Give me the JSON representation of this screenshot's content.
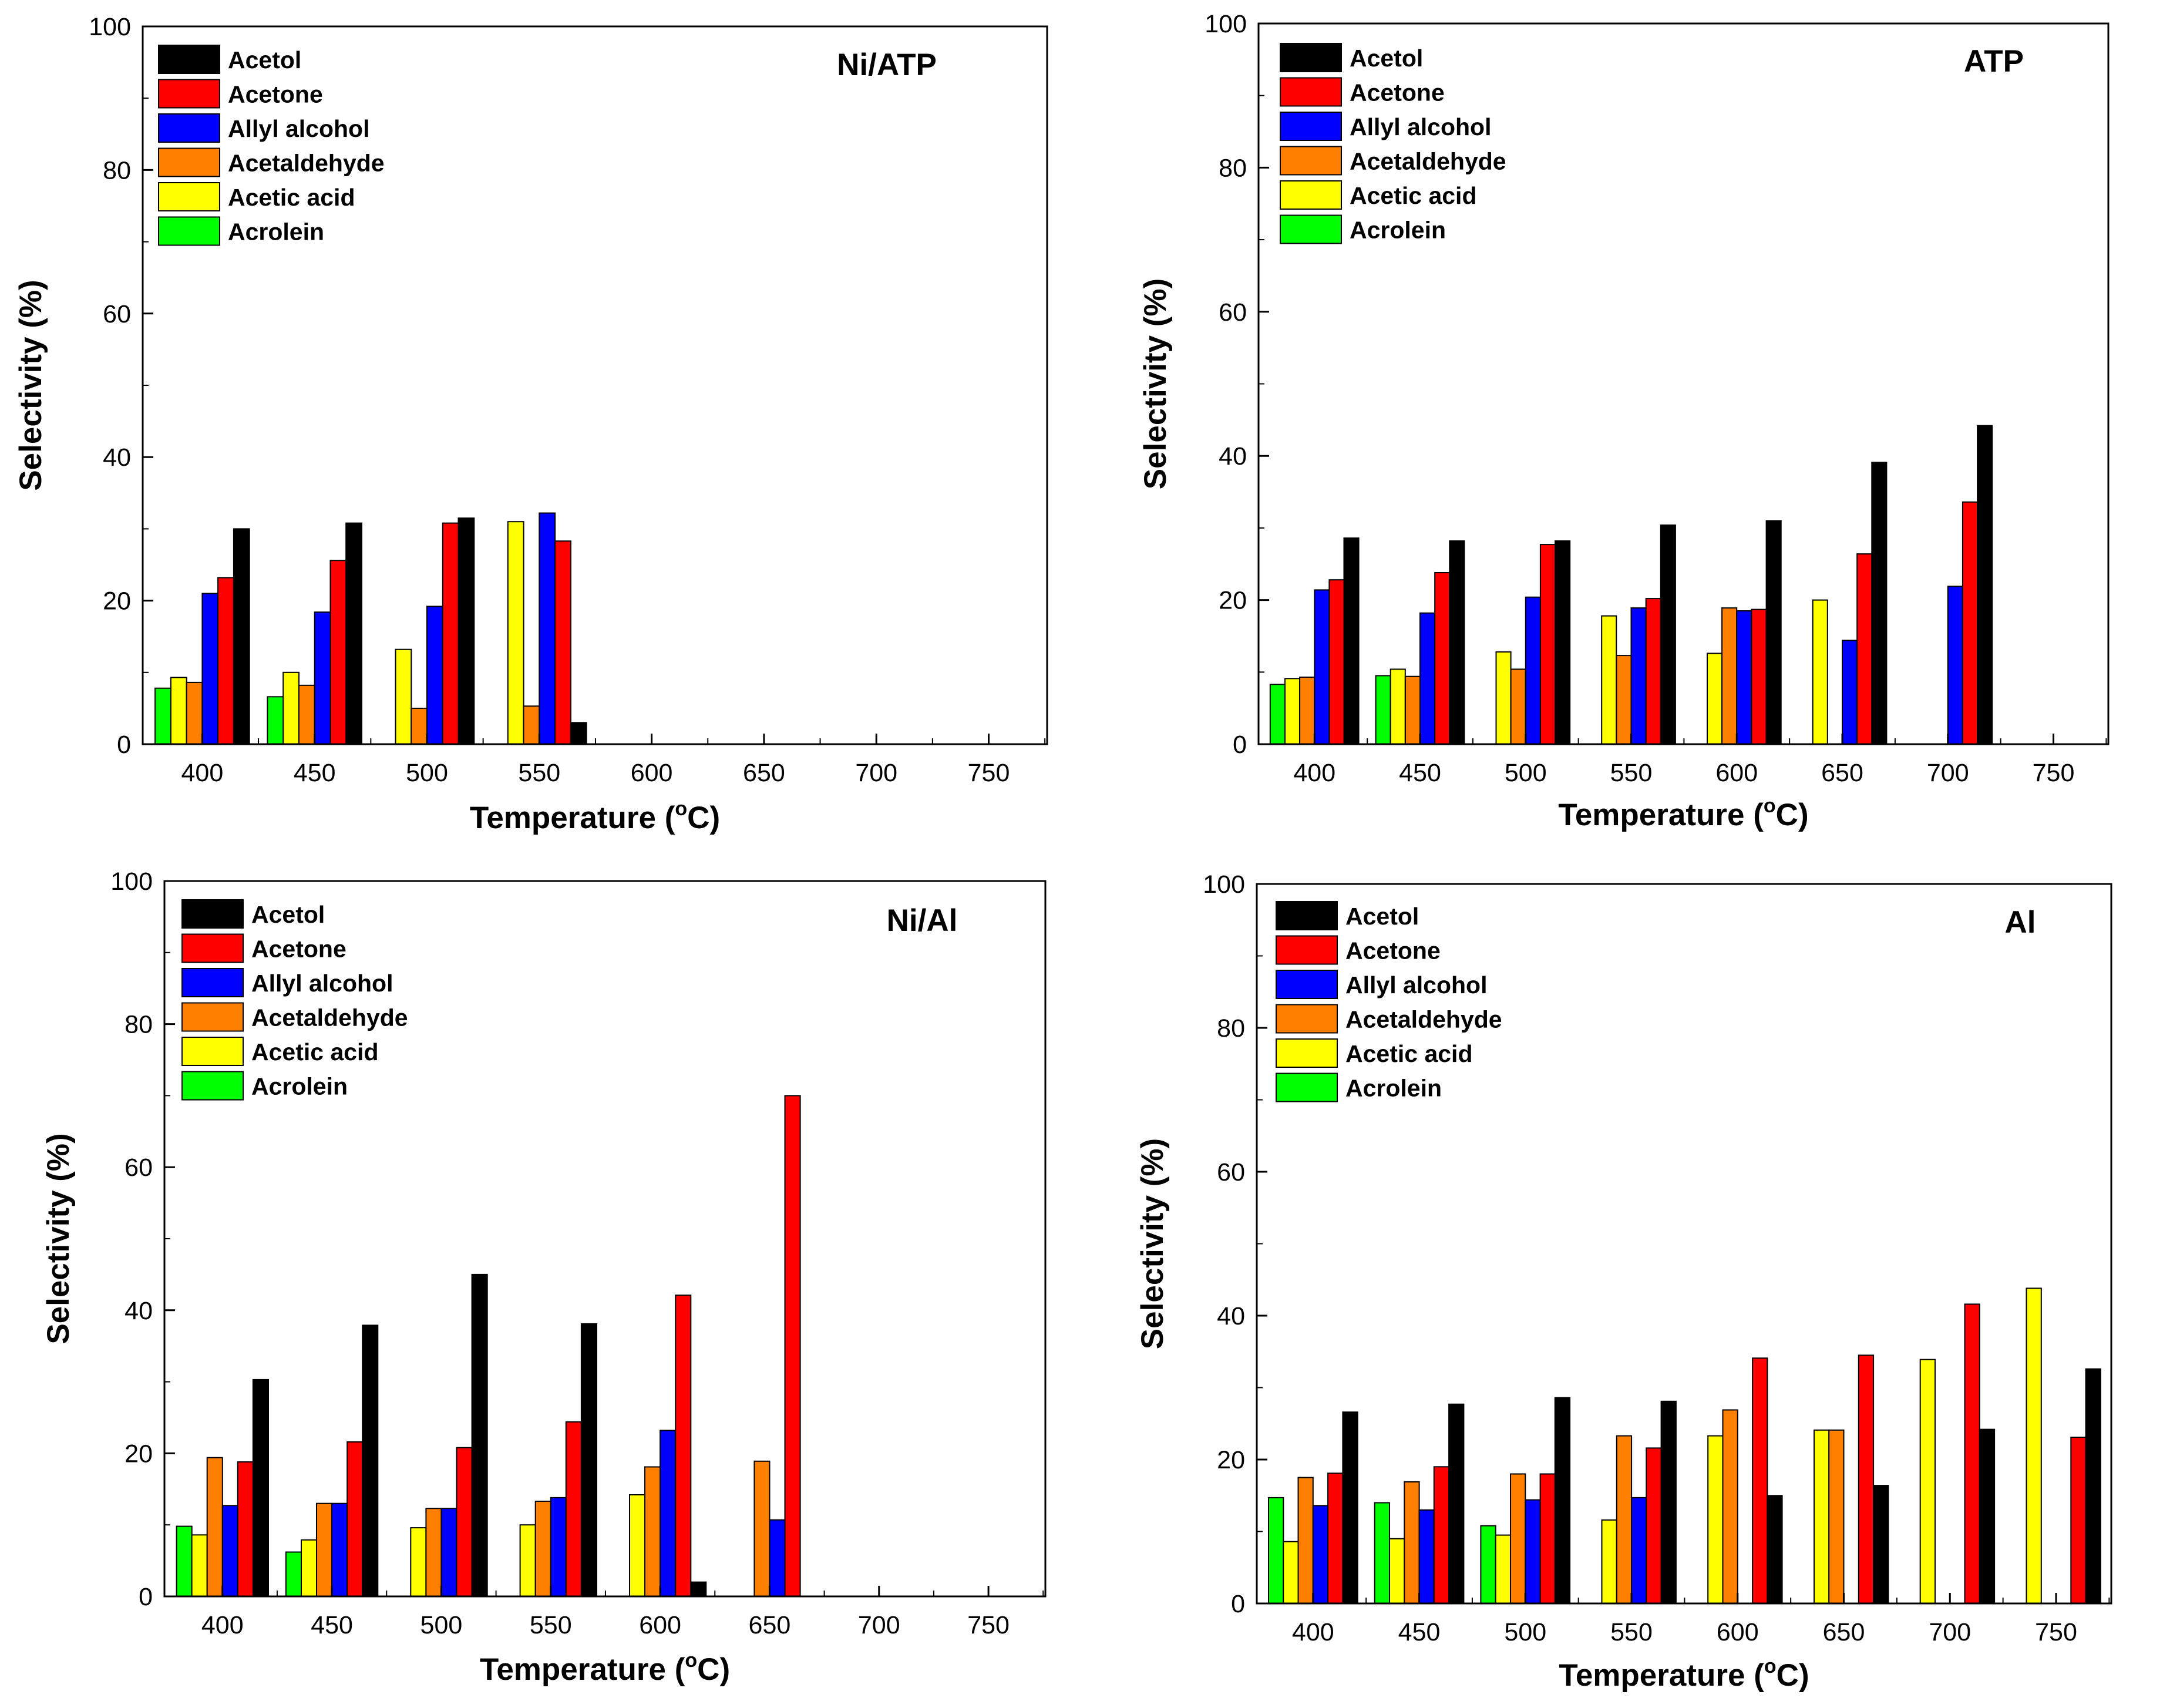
{
  "colors": {
    "Acetol": "#000000",
    "Acetone": "#ff0000",
    "Allyl alcohol": "#0000ff",
    "Acetaldehyde": "#ff8000",
    "Acetic acid": "#ffff00",
    "Acrolein": "#00ff00"
  },
  "chart_data": [
    {
      "type": "bar",
      "title": "Ni/ATP",
      "xlabel": "Temperature (",
      "xlabel_sup": "o",
      "xlabel_tail": "C)",
      "ylabel": "Selectivity (%)",
      "ylim": [
        0,
        100
      ],
      "yticks": [
        "0",
        "20",
        "40",
        "60",
        "80",
        "100"
      ],
      "categories": [
        "400",
        "450",
        "500",
        "550",
        "600",
        "650",
        "700",
        "750"
      ],
      "legend": [
        "Acetol",
        "Acetone",
        "Allyl alcohol",
        "Acetaldehyde",
        "Acetic acid",
        "Acrolein"
      ],
      "bar_order": [
        "Acrolein",
        "Acetic acid",
        "Acetaldehyde",
        "Allyl alcohol",
        "Acetone",
        "Acetol"
      ],
      "series": [
        {
          "name": "Acrolein",
          "values": [
            7.8,
            6.6,
            0,
            0,
            0,
            0,
            0,
            0
          ]
        },
        {
          "name": "Acetic acid",
          "values": [
            9.3,
            10.0,
            13.2,
            31.0,
            0,
            0,
            0,
            0
          ]
        },
        {
          "name": "Acetaldehyde",
          "values": [
            8.6,
            8.2,
            5.0,
            5.3,
            0,
            0,
            0,
            0
          ]
        },
        {
          "name": "Allyl alcohol",
          "values": [
            21.0,
            18.4,
            19.2,
            32.2,
            0,
            0,
            0,
            0
          ]
        },
        {
          "name": "Acetone",
          "values": [
            23.2,
            25.6,
            30.8,
            28.3,
            0,
            0,
            0,
            0
          ]
        },
        {
          "name": "Acetol",
          "values": [
            30.0,
            30.8,
            31.5,
            3.0,
            0,
            0,
            0,
            0
          ]
        }
      ]
    },
    {
      "type": "bar",
      "title": "ATP",
      "xlabel": "Temperature (",
      "xlabel_sup": "o",
      "xlabel_tail": "C)",
      "ylabel": "Selectivity (%)",
      "ylim": [
        0,
        100
      ],
      "yticks": [
        "0",
        "20",
        "40",
        "60",
        "80",
        "100"
      ],
      "categories": [
        "400",
        "450",
        "500",
        "550",
        "600",
        "650",
        "700",
        "750"
      ],
      "legend": [
        "Acetol",
        "Acetone",
        "Allyl alcohol",
        "Acetaldehyde",
        "Acetic acid",
        "Acrolein"
      ],
      "bar_order": [
        "Acrolein",
        "Acetic acid",
        "Acetaldehyde",
        "Allyl alcohol",
        "Acetone",
        "Acetol"
      ],
      "series": [
        {
          "name": "Acrolein",
          "values": [
            8.3,
            9.5,
            0,
            0,
            0,
            0,
            0,
            0
          ]
        },
        {
          "name": "Acetic acid",
          "values": [
            9.1,
            10.4,
            12.8,
            17.8,
            12.6,
            20.0,
            0,
            0
          ]
        },
        {
          "name": "Acetaldehyde",
          "values": [
            9.3,
            9.4,
            10.4,
            12.3,
            18.9,
            0,
            0,
            0
          ]
        },
        {
          "name": "Allyl alcohol",
          "values": [
            21.4,
            18.2,
            20.4,
            18.9,
            18.5,
            14.4,
            21.9,
            0
          ]
        },
        {
          "name": "Acetone",
          "values": [
            22.8,
            23.8,
            27.7,
            20.2,
            18.7,
            26.4,
            33.6,
            0
          ]
        },
        {
          "name": "Acetol",
          "values": [
            28.6,
            28.2,
            28.2,
            30.4,
            31.0,
            39.1,
            44.2,
            0
          ]
        }
      ]
    },
    {
      "type": "bar",
      "title": "Ni/Al",
      "xlabel": "Temperature (",
      "xlabel_sup": "o",
      "xlabel_tail": "C)",
      "ylabel": "Selectivity (%)",
      "ylim": [
        0,
        100
      ],
      "yticks": [
        "0",
        "20",
        "40",
        "60",
        "80",
        "100"
      ],
      "categories": [
        "400",
        "450",
        "500",
        "550",
        "600",
        "650",
        "700",
        "750"
      ],
      "legend": [
        "Acetol",
        "Acetone",
        "Allyl alcohol",
        "Acetaldehyde",
        "Acetic acid",
        "Acrolein"
      ],
      "bar_order": [
        "Acrolein",
        "Acetic acid",
        "Acetaldehyde",
        "Allyl alcohol",
        "Acetone",
        "Acetol"
      ],
      "series": [
        {
          "name": "Acrolein",
          "values": [
            9.8,
            6.2,
            0,
            0,
            0,
            0,
            0,
            0
          ]
        },
        {
          "name": "Acetic acid",
          "values": [
            8.6,
            7.9,
            9.6,
            10.0,
            14.2,
            0,
            0,
            0
          ]
        },
        {
          "name": "Acetaldehyde",
          "values": [
            19.4,
            13.0,
            12.3,
            13.3,
            18.1,
            18.9,
            0,
            0
          ]
        },
        {
          "name": "Allyl alcohol",
          "values": [
            12.7,
            13.0,
            12.3,
            13.8,
            23.2,
            10.7,
            0,
            0
          ]
        },
        {
          "name": "Acetone",
          "values": [
            18.8,
            21.6,
            20.8,
            24.4,
            42.1,
            70.0,
            0,
            0
          ]
        },
        {
          "name": "Acetol",
          "values": [
            30.3,
            37.9,
            45.0,
            38.1,
            2.0,
            0,
            0,
            0
          ]
        }
      ]
    },
    {
      "type": "bar",
      "title": "Al",
      "xlabel": "Temperature (",
      "xlabel_sup": "o",
      "xlabel_tail": "C)",
      "ylabel": "Selectivity (%)",
      "ylim": [
        0,
        100
      ],
      "yticks": [
        "0",
        "20",
        "40",
        "60",
        "80",
        "100"
      ],
      "categories": [
        "400",
        "450",
        "500",
        "550",
        "600",
        "650",
        "700",
        "750"
      ],
      "legend": [
        "Acetol",
        "Acetone",
        "Allyl alcohol",
        "Acetaldehyde",
        "Acetic acid",
        "Acrolein"
      ],
      "bar_order": [
        "Acrolein",
        "Acetic acid",
        "Acetaldehyde",
        "Allyl alcohol",
        "Acetone",
        "Acetol"
      ],
      "series": [
        {
          "name": "Acrolein",
          "values": [
            14.7,
            14.0,
            10.8,
            0,
            0,
            0,
            0,
            0
          ]
        },
        {
          "name": "Acetic acid",
          "values": [
            8.6,
            9.0,
            9.5,
            11.6,
            23.3,
            24.1,
            33.9,
            43.8
          ]
        },
        {
          "name": "Acetaldehyde",
          "values": [
            17.5,
            16.9,
            18.0,
            23.3,
            26.9,
            24.1,
            0,
            0
          ]
        },
        {
          "name": "Allyl alcohol",
          "values": [
            13.6,
            13.0,
            14.4,
            14.7,
            0,
            0,
            0,
            0
          ]
        },
        {
          "name": "Acetone",
          "values": [
            18.1,
            19.0,
            18.0,
            21.6,
            34.1,
            34.5,
            41.6,
            23.1
          ]
        },
        {
          "name": "Acetol",
          "values": [
            26.6,
            27.7,
            28.6,
            28.1,
            15.0,
            16.4,
            24.2,
            32.6
          ]
        }
      ]
    }
  ]
}
